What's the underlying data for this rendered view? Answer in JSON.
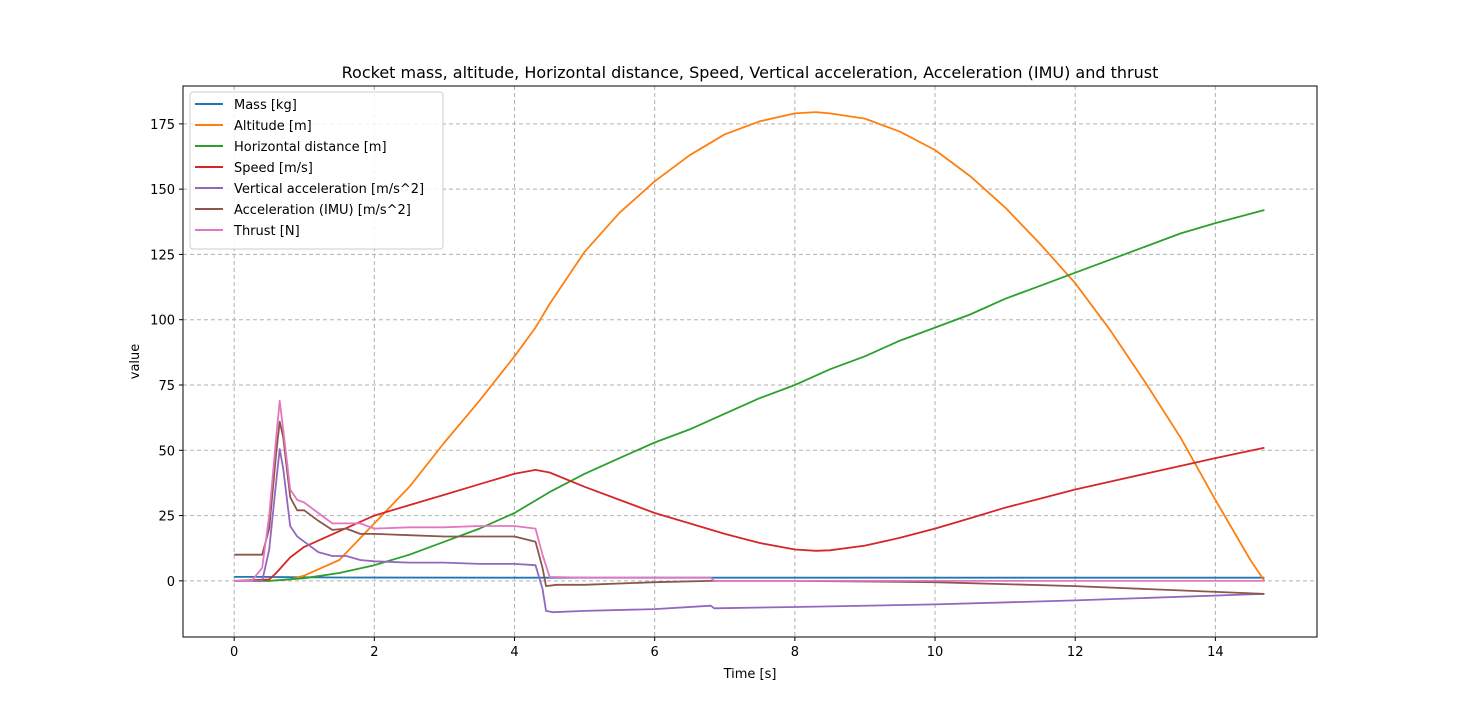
{
  "chart_data": {
    "type": "line",
    "title": "Rocket mass, altitude, Horizontal distance, Speed, Vertical acceleration, Acceleration (IMU) and thrust",
    "xlabel": "Time [s]",
    "ylabel": "value",
    "xlim": [
      -0.73,
      15.45
    ],
    "ylim": [
      -21.5,
      189.5
    ],
    "xticks": [
      0,
      2,
      4,
      6,
      8,
      10,
      12,
      14
    ],
    "yticks": [
      0,
      25,
      50,
      75,
      100,
      125,
      150,
      175
    ],
    "grid": true,
    "legend_position": "top-left",
    "series": [
      {
        "name": "Mass [kg]",
        "color": "#1f77b4",
        "points": [
          [
            0,
            1.5
          ],
          [
            0.4,
            1.5
          ],
          [
            0.8,
            1.4
          ],
          [
            1.5,
            1.3
          ],
          [
            4.3,
            1.2
          ],
          [
            14.7,
            1.2
          ]
        ]
      },
      {
        "name": "Altitude [m]",
        "color": "#ff7f0e",
        "points": [
          [
            0,
            0
          ],
          [
            0.5,
            0
          ],
          [
            0.8,
            0.5
          ],
          [
            1,
            2
          ],
          [
            1.5,
            8
          ],
          [
            2,
            22
          ],
          [
            2.5,
            36
          ],
          [
            3,
            53
          ],
          [
            3.5,
            69
          ],
          [
            4,
            86
          ],
          [
            4.3,
            97
          ],
          [
            4.5,
            106
          ],
          [
            5,
            126
          ],
          [
            5.5,
            141
          ],
          [
            6,
            153
          ],
          [
            6.5,
            163
          ],
          [
            7,
            171
          ],
          [
            7.5,
            176
          ],
          [
            8,
            179
          ],
          [
            8.3,
            179.5
          ],
          [
            8.5,
            179
          ],
          [
            9,
            177
          ],
          [
            9.5,
            172
          ],
          [
            10,
            165
          ],
          [
            10.5,
            155
          ],
          [
            11,
            143
          ],
          [
            11.5,
            129
          ],
          [
            12,
            114
          ],
          [
            12.5,
            96
          ],
          [
            13,
            76
          ],
          [
            13.5,
            55
          ],
          [
            14,
            31
          ],
          [
            14.5,
            8
          ],
          [
            14.7,
            0
          ]
        ]
      },
      {
        "name": "Horizontal distance [m]",
        "color": "#2ca02c",
        "points": [
          [
            0,
            0
          ],
          [
            0.5,
            0
          ],
          [
            1,
            1
          ],
          [
            1.5,
            3
          ],
          [
            2,
            6
          ],
          [
            2.5,
            10
          ],
          [
            3,
            15
          ],
          [
            3.5,
            20
          ],
          [
            4,
            26
          ],
          [
            4.5,
            34
          ],
          [
            5,
            41
          ],
          [
            5.5,
            47
          ],
          [
            6,
            53
          ],
          [
            6.5,
            58
          ],
          [
            7,
            64
          ],
          [
            7.5,
            70
          ],
          [
            8,
            75
          ],
          [
            8.5,
            81
          ],
          [
            9,
            86
          ],
          [
            9.5,
            92
          ],
          [
            10,
            97
          ],
          [
            10.5,
            102
          ],
          [
            11,
            108
          ],
          [
            11.5,
            113
          ],
          [
            12,
            118
          ],
          [
            12.5,
            123
          ],
          [
            13,
            128
          ],
          [
            13.5,
            133
          ],
          [
            14,
            137
          ],
          [
            14.7,
            142
          ]
        ]
      },
      {
        "name": "Speed [m/s]",
        "color": "#d62728",
        "points": [
          [
            0,
            0
          ],
          [
            0.5,
            0.5
          ],
          [
            0.6,
            3
          ],
          [
            0.8,
            9
          ],
          [
            1,
            13
          ],
          [
            1.5,
            19
          ],
          [
            2,
            25
          ],
          [
            2.5,
            29
          ],
          [
            3,
            33
          ],
          [
            3.5,
            37
          ],
          [
            4,
            41
          ],
          [
            4.3,
            42.5
          ],
          [
            4.5,
            41.5
          ],
          [
            5,
            36
          ],
          [
            5.5,
            31
          ],
          [
            6,
            26
          ],
          [
            6.5,
            22
          ],
          [
            7,
            18
          ],
          [
            7.5,
            14.5
          ],
          [
            8,
            12
          ],
          [
            8.3,
            11.5
          ],
          [
            8.5,
            11.7
          ],
          [
            9,
            13.5
          ],
          [
            9.5,
            16.5
          ],
          [
            10,
            20
          ],
          [
            10.5,
            24
          ],
          [
            11,
            28
          ],
          [
            11.5,
            31.5
          ],
          [
            12,
            35
          ],
          [
            12.5,
            38
          ],
          [
            13,
            41
          ],
          [
            13.5,
            44
          ],
          [
            14,
            47
          ],
          [
            14.7,
            51
          ]
        ]
      },
      {
        "name": "Vertical acceleration [m/s^2]",
        "color": "#9467bd",
        "points": [
          [
            0,
            0
          ],
          [
            0.4,
            0
          ],
          [
            0.5,
            12
          ],
          [
            0.6,
            38
          ],
          [
            0.65,
            50.5
          ],
          [
            0.7,
            43
          ],
          [
            0.8,
            21
          ],
          [
            0.9,
            17
          ],
          [
            1,
            15
          ],
          [
            1.2,
            11
          ],
          [
            1.4,
            9.5
          ],
          [
            1.6,
            9.5
          ],
          [
            1.8,
            8
          ],
          [
            2,
            7.5
          ],
          [
            2.5,
            7
          ],
          [
            3,
            7
          ],
          [
            3.5,
            6.5
          ],
          [
            4,
            6.5
          ],
          [
            4.3,
            6
          ],
          [
            4.4,
            -3
          ],
          [
            4.45,
            -11.5
          ],
          [
            4.55,
            -12
          ],
          [
            5,
            -11.5
          ],
          [
            6,
            -10.8
          ],
          [
            6.8,
            -9.5
          ],
          [
            6.85,
            -10.5
          ],
          [
            8,
            -10
          ],
          [
            10,
            -9
          ],
          [
            12,
            -7.5
          ],
          [
            14.7,
            -5
          ]
        ]
      },
      {
        "name": "Acceleration (IMU) [m/s^2]",
        "color": "#8c564b",
        "points": [
          [
            0,
            10
          ],
          [
            0.4,
            10
          ],
          [
            0.5,
            20
          ],
          [
            0.6,
            49
          ],
          [
            0.65,
            61
          ],
          [
            0.7,
            55
          ],
          [
            0.8,
            32
          ],
          [
            0.9,
            27
          ],
          [
            1,
            27
          ],
          [
            1.2,
            23
          ],
          [
            1.4,
            19.5
          ],
          [
            1.6,
            20
          ],
          [
            1.8,
            18
          ],
          [
            2,
            18
          ],
          [
            2.5,
            17.5
          ],
          [
            3,
            17
          ],
          [
            3.5,
            17
          ],
          [
            4,
            17
          ],
          [
            4.3,
            15
          ],
          [
            4.4,
            5
          ],
          [
            4.45,
            -2
          ],
          [
            4.6,
            -1.5
          ],
          [
            5,
            -1.5
          ],
          [
            6,
            -0.5
          ],
          [
            6.8,
            0
          ],
          [
            8,
            0
          ],
          [
            10,
            -0.5
          ],
          [
            12,
            -2
          ],
          [
            14.7,
            -5
          ]
        ]
      },
      {
        "name": "Thrust [N]",
        "color": "#e377c2",
        "points": [
          [
            0,
            0
          ],
          [
            0.25,
            0
          ],
          [
            0.4,
            5
          ],
          [
            0.5,
            25
          ],
          [
            0.6,
            55
          ],
          [
            0.65,
            69
          ],
          [
            0.7,
            58
          ],
          [
            0.8,
            35
          ],
          [
            0.9,
            31
          ],
          [
            1,
            30
          ],
          [
            1.2,
            26
          ],
          [
            1.4,
            22
          ],
          [
            1.6,
            22
          ],
          [
            1.8,
            22
          ],
          [
            2,
            20
          ],
          [
            2.5,
            20.5
          ],
          [
            3,
            20.5
          ],
          [
            3.5,
            21
          ],
          [
            4,
            21
          ],
          [
            4.3,
            20
          ],
          [
            4.4,
            10
          ],
          [
            4.5,
            1.5
          ],
          [
            5,
            1.2
          ],
          [
            6.8,
            1.2
          ],
          [
            6.85,
            0
          ],
          [
            14.7,
            0
          ]
        ]
      }
    ]
  }
}
